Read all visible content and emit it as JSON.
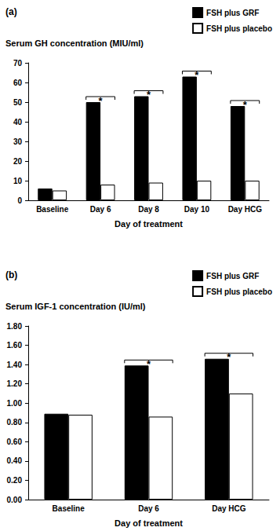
{
  "chart_data": [
    {
      "type": "bar",
      "title": "(a)",
      "y_label": "Serum GH concentration (MIU/ml)",
      "x_label": "Day of treatment",
      "categories": [
        "Baseline",
        "Day 6",
        "Day 8",
        "Day 10",
        "Day HCG"
      ],
      "series": [
        {
          "name": "FSH plus GRF",
          "color": "#000000",
          "values": [
            6,
            50,
            53,
            63,
            48
          ]
        },
        {
          "name": "FSH plus placebo",
          "color": "#ffffff",
          "values": [
            5,
            8,
            9,
            10,
            10
          ]
        }
      ],
      "annotations": [
        {
          "category": "Day 6",
          "text": "*"
        },
        {
          "category": "Day 8",
          "text": "*"
        },
        {
          "category": "Day 10",
          "text": "*"
        },
        {
          "category": "Day HCG",
          "text": "*"
        }
      ],
      "ylim": [
        0,
        70
      ],
      "yticks": [
        0,
        10,
        20,
        30,
        40,
        50,
        60,
        70
      ],
      "grid": false,
      "legend": "upper right"
    },
    {
      "type": "bar",
      "title": "(b)",
      "y_label": "Serum IGF-1 concentration (IU/ml)",
      "x_label": "Day of treatment",
      "categories": [
        "Baseline",
        "Day 6",
        "Day HCG"
      ],
      "series": [
        {
          "name": "FSH plus GRF",
          "color": "#000000",
          "values": [
            0.89,
            1.39,
            1.46
          ]
        },
        {
          "name": "FSH plus placebo",
          "color": "#ffffff",
          "values": [
            0.88,
            0.86,
            1.1
          ]
        }
      ],
      "annotations": [
        {
          "category": "Day 6",
          "text": "*"
        },
        {
          "category": "Day HCG",
          "text": "*"
        }
      ],
      "ylim": [
        0,
        1.8
      ],
      "yticks": [
        {
          "value": 0,
          "label": "0.00"
        },
        {
          "value": 0.2,
          "label": "0.20"
        },
        {
          "value": 0.4,
          "label": "0.40"
        },
        {
          "value": 0.6,
          "label": "0.60"
        },
        {
          "value": 0.8,
          "label": "0.80"
        },
        {
          "value": 1.0,
          "label": "1.00"
        },
        {
          "value": 1.2,
          "label": "1.20"
        },
        {
          "value": 1.4,
          "label": "1.40"
        },
        {
          "value": 1.6,
          "label": "1.60"
        },
        {
          "value": 1.8,
          "label": "1.80"
        }
      ],
      "grid": false,
      "legend": "upper right"
    }
  ]
}
